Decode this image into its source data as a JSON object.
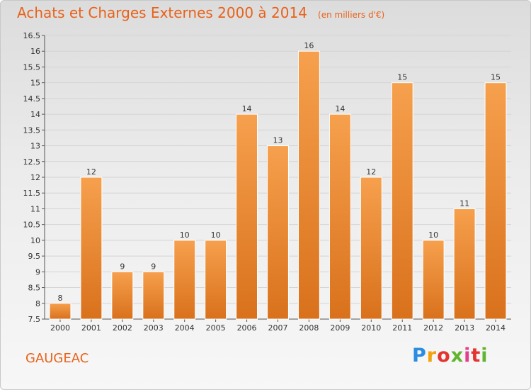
{
  "chart_data": {
    "type": "bar",
    "title": "Achats et Charges Externes 2000 à 2014",
    "subtitle": "(en milliers d'€)",
    "xlabel": "",
    "ylabel": "",
    "categories": [
      "2000",
      "2001",
      "2002",
      "2003",
      "2004",
      "2005",
      "2006",
      "2007",
      "2008",
      "2009",
      "2010",
      "2011",
      "2012",
      "2013",
      "2014"
    ],
    "values": [
      8,
      12,
      9,
      9,
      10,
      10,
      14,
      13,
      16,
      14,
      12,
      15,
      10,
      11,
      15
    ],
    "ylim": [
      7.5,
      16.5
    ],
    "yticks": [
      "7.5",
      "8",
      "8.5",
      "9",
      "9.5",
      "10",
      "10.5",
      "11",
      "11.5",
      "12",
      "12.5",
      "13",
      "13.5",
      "14",
      "14.5",
      "15",
      "15.5",
      "16",
      "16.5"
    ],
    "grid": true,
    "legend": "none",
    "bar_color_top": "#f6a04d",
    "bar_color_bottom": "#d9711c"
  },
  "footer": {
    "commune": "GAUGEAC",
    "logo_text": "Proxiti"
  },
  "colors": {
    "accent": "#e8621a"
  }
}
